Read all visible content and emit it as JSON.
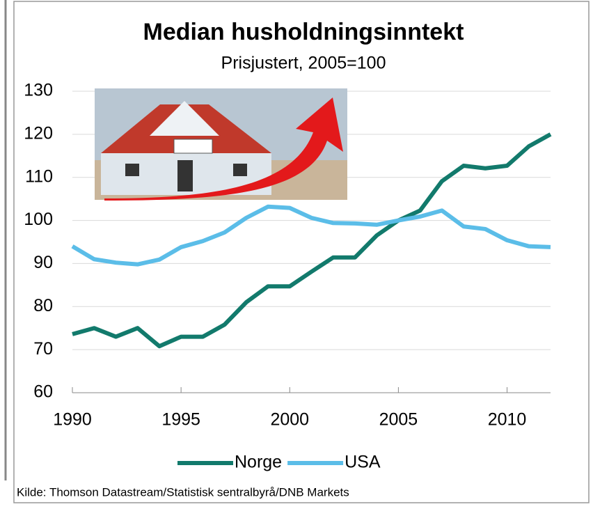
{
  "chart_data": {
    "type": "line",
    "title": "Median husholdningsinntekt",
    "subtitle": "Prisjustert, 2005=100",
    "x": [
      1990,
      1991,
      1992,
      1993,
      1994,
      1995,
      1996,
      1997,
      1998,
      1999,
      2000,
      2001,
      2002,
      2003,
      2004,
      2005,
      2006,
      2007,
      2008,
      2009,
      2010,
      2011,
      2012
    ],
    "series": [
      {
        "name": "Norge",
        "color": "#127a6c",
        "values": [
          73.6,
          75,
          73,
          75,
          70.8,
          73,
          73,
          75.8,
          81,
          84.7,
          84.7,
          88.1,
          91.4,
          91.4,
          96.5,
          100,
          102.3,
          109.1,
          112.7,
          112.1,
          112.7,
          117.2,
          120
        ]
      },
      {
        "name": "USA",
        "color": "#5bbde8",
        "values": [
          94,
          91,
          90.2,
          89.8,
          90.9,
          93.8,
          95.2,
          97.2,
          100.6,
          103.2,
          102.9,
          100.6,
          99.4,
          99.3,
          99,
          100,
          100.9,
          102.3,
          98.6,
          98,
          95.4,
          94,
          93.8
        ]
      }
    ],
    "xlim": [
      1990,
      2012
    ],
    "xticks": [
      1990,
      1995,
      2000,
      2005,
      2010
    ],
    "ylim": [
      60,
      130
    ],
    "yticks": [
      60,
      70,
      80,
      90,
      100,
      110,
      120,
      130
    ],
    "grid": true,
    "legend": "bottom",
    "source": "Kilde: Thomson Datastream/Statistisk sentralbyrå/DNB Markets"
  }
}
